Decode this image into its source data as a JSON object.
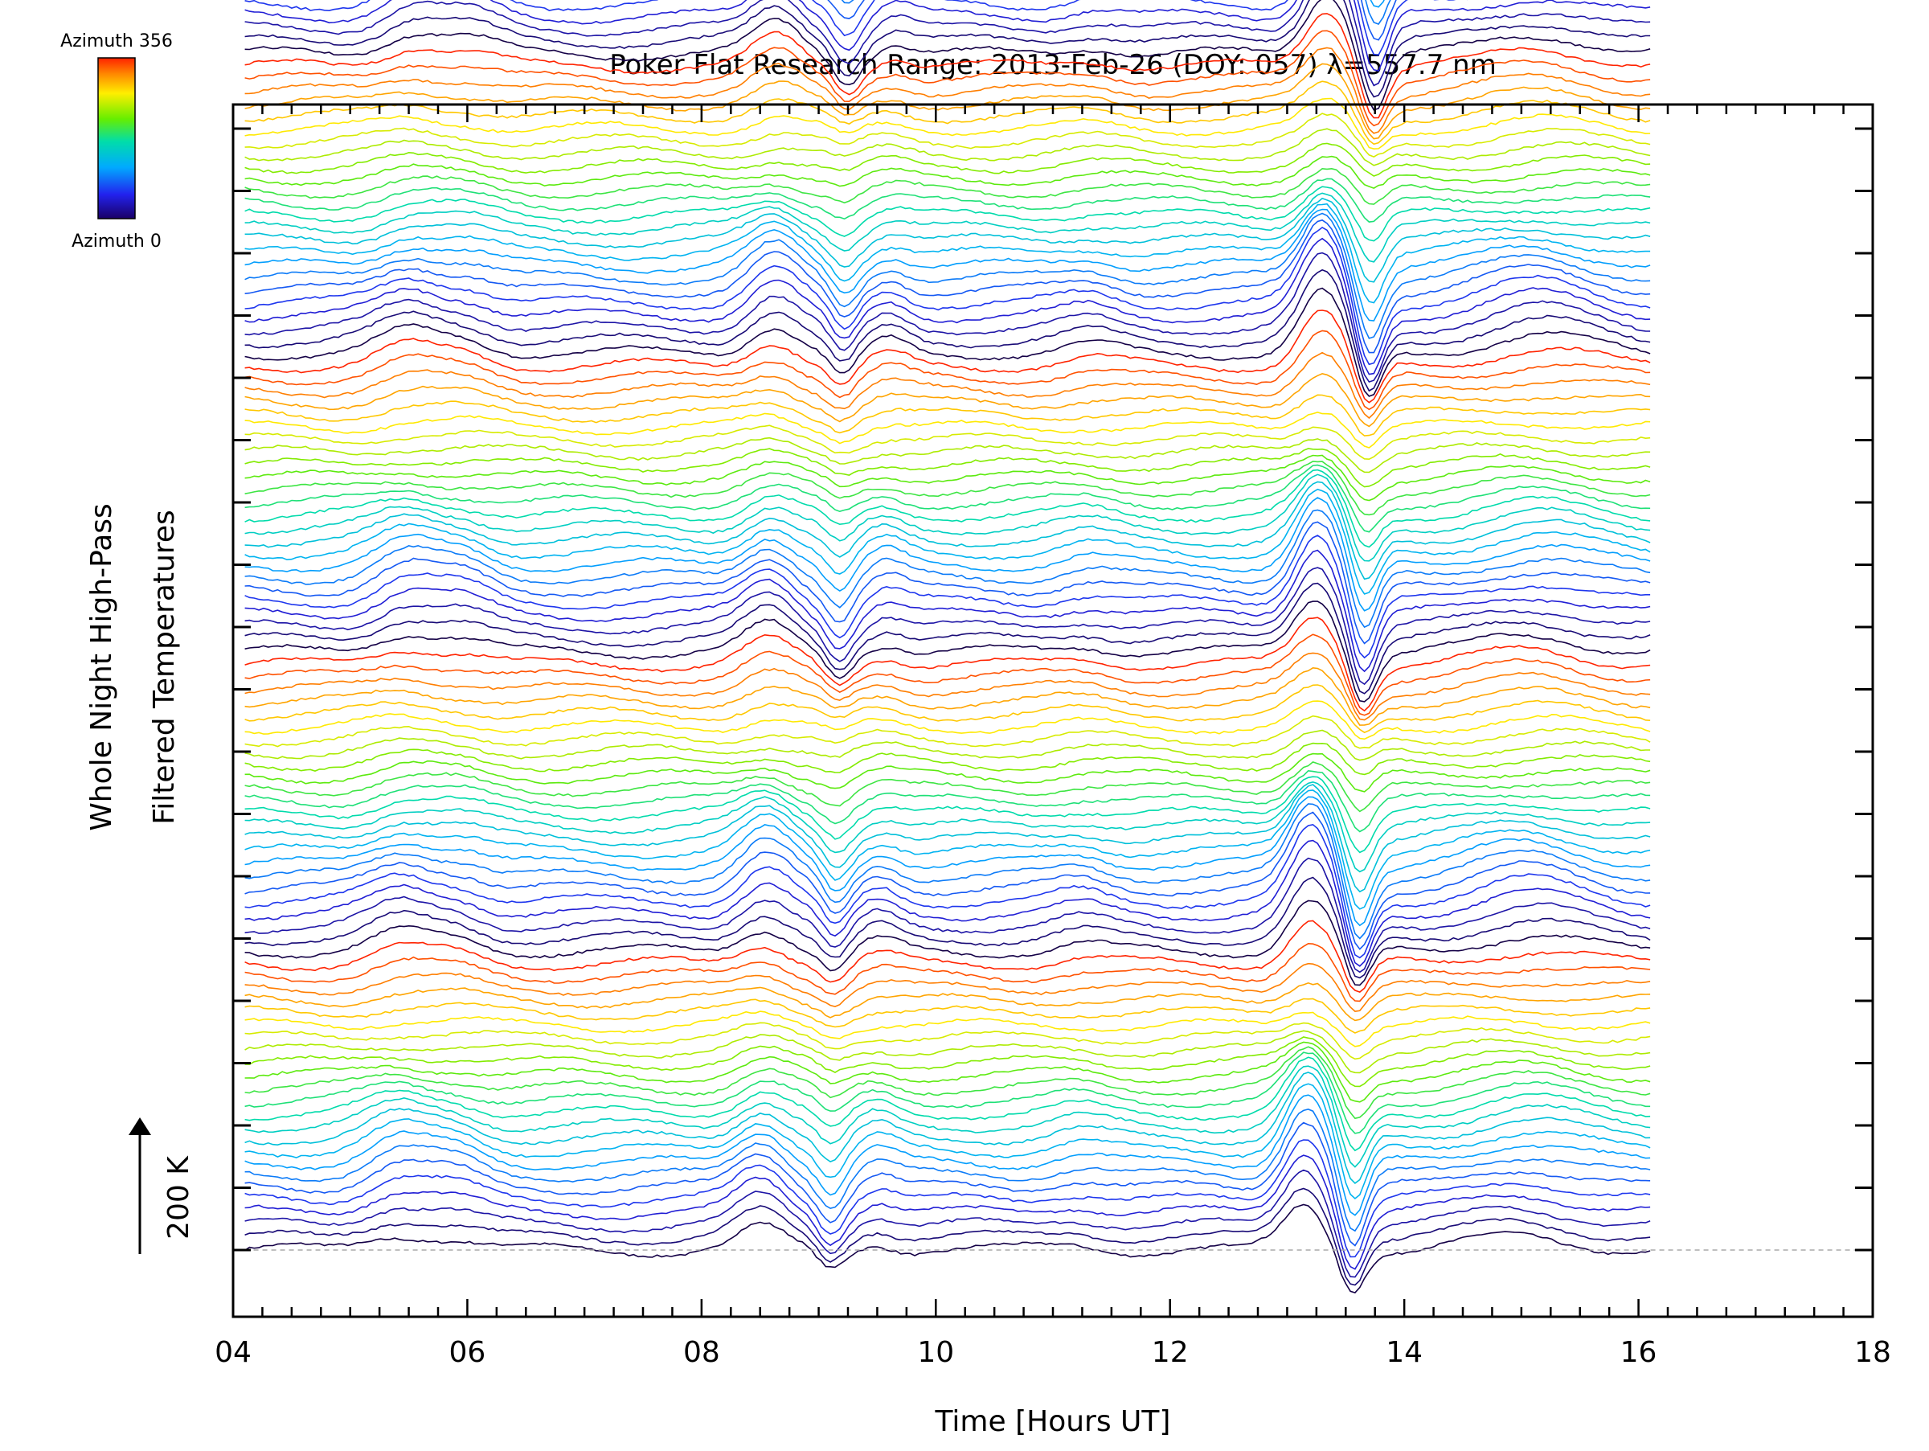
{
  "chart_data": {
    "type": "line",
    "title": "Poker Flat Research Range: 2013-Feb-26 (DOY: 057) λ=557.7 nm",
    "xlabel": "Time [Hours UT]",
    "ylabel_line1": "Whole Night High-Pass",
    "ylabel_line2": "Filtered Temperatures",
    "xlim": [
      4,
      18
    ],
    "x_tick_labels": [
      "04",
      "06",
      "08",
      "10",
      "12",
      "14",
      "16",
      "18"
    ],
    "x_tick_values": [
      4,
      6,
      8,
      10,
      12,
      14,
      16,
      18
    ],
    "scale_bar_label": "200 K",
    "scale_bar_kelvin": 200,
    "colorbar": {
      "top_label": "Azimuth 356",
      "bottom_label": "Azimuth 0",
      "min": 0,
      "max": 356,
      "colormap": "rainbow"
    },
    "baseline_dashed": true,
    "time_range": [
      4.1,
      16.1
    ],
    "num_traces": 144,
    "trace_spacing_kelvin": 20,
    "azimuth_cycle_traces": 24,
    "features": [
      {
        "time": 5.4,
        "amplitude": 34,
        "width": 0.35
      },
      {
        "time": 5.9,
        "amplitude": 20,
        "width": 0.3
      },
      {
        "time": 8.5,
        "amplitude": 46,
        "width": 0.28
      },
      {
        "time": 9.1,
        "amplitude": -40,
        "width": 0.15
      },
      {
        "time": 9.5,
        "amplitude": 18,
        "width": 0.2
      },
      {
        "time": 11.2,
        "amplitude": 12,
        "width": 0.3
      },
      {
        "time": 13.15,
        "amplitude": 95,
        "width": 0.25
      },
      {
        "time": 13.55,
        "amplitude": -85,
        "width": 0.15
      },
      {
        "time": 15.0,
        "amplitude": 28,
        "width": 0.6
      }
    ]
  }
}
